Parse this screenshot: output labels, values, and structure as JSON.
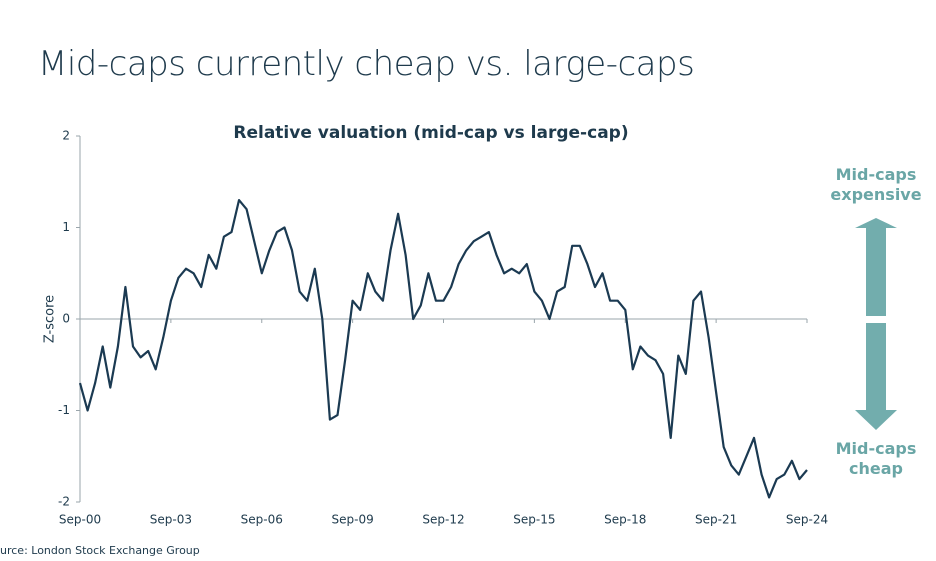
{
  "slide_title": "Mid-caps currently cheap vs. large-caps",
  "source": "urce: London Stock Exchange Group",
  "chart_data": {
    "type": "line",
    "title": "Relative valuation (mid-cap vs large-cap)",
    "y_label": "Z-score",
    "annotations": [
      "Mid-caps expensive",
      "Mid-caps cheap"
    ],
    "color": "#1b3a52",
    "x": [
      "2000-09",
      "2000-12",
      "2001-03",
      "2001-06",
      "2001-09",
      "2001-12",
      "2002-03",
      "2002-06",
      "2002-09",
      "2002-12",
      "2003-03",
      "2003-06",
      "2003-09",
      "2003-12",
      "2004-03",
      "2004-06",
      "2004-09",
      "2004-12",
      "2005-03",
      "2005-06",
      "2005-09",
      "2005-12",
      "2006-03",
      "2006-06",
      "2006-09",
      "2006-12",
      "2007-03",
      "2007-06",
      "2007-09",
      "2007-12",
      "2008-03",
      "2008-06",
      "2008-09",
      "2008-12",
      "2009-03",
      "2009-06",
      "2009-09",
      "2009-12",
      "2010-03",
      "2010-06",
      "2010-09",
      "2010-12",
      "2011-03",
      "2011-06",
      "2011-09",
      "2011-12",
      "2012-03",
      "2012-06",
      "2012-09",
      "2012-12",
      "2013-03",
      "2013-06",
      "2013-09",
      "2013-12",
      "2014-03",
      "2014-06",
      "2014-09",
      "2014-12",
      "2015-03",
      "2015-06",
      "2015-09",
      "2015-12",
      "2016-03",
      "2016-06",
      "2016-09",
      "2016-12",
      "2017-03",
      "2017-06",
      "2017-09",
      "2017-12",
      "2018-03",
      "2018-06",
      "2018-09",
      "2018-12",
      "2019-03",
      "2019-06",
      "2019-09",
      "2019-12",
      "2020-03",
      "2020-06",
      "2020-09",
      "2020-12",
      "2021-03",
      "2021-06",
      "2021-09",
      "2021-12",
      "2022-03",
      "2022-06",
      "2022-09",
      "2022-12",
      "2023-03",
      "2023-06",
      "2023-09",
      "2023-12",
      "2024-03",
      "2024-06",
      "2024-09"
    ],
    "values": [
      -0.7,
      -1.0,
      -0.7,
      -0.3,
      -0.75,
      -0.3,
      0.35,
      -0.3,
      -0.42,
      -0.35,
      -0.55,
      -0.2,
      0.2,
      0.45,
      0.55,
      0.5,
      0.35,
      0.7,
      0.55,
      0.9,
      0.95,
      1.3,
      1.2,
      0.85,
      0.5,
      0.75,
      0.95,
      1.0,
      0.75,
      0.3,
      0.2,
      0.55,
      0.0,
      -1.1,
      -1.05,
      -0.45,
      0.2,
      0.1,
      0.5,
      0.3,
      0.2,
      0.75,
      1.15,
      0.7,
      0.0,
      0.15,
      0.5,
      0.2,
      0.2,
      0.35,
      0.6,
      0.75,
      0.85,
      0.9,
      0.95,
      0.7,
      0.5,
      0.55,
      0.5,
      0.6,
      0.3,
      0.2,
      0.0,
      0.3,
      0.35,
      0.8,
      0.8,
      0.6,
      0.35,
      0.5,
      0.2,
      0.2,
      0.1,
      -0.55,
      -0.3,
      -0.4,
      -0.45,
      -0.6,
      -1.3,
      -0.4,
      -0.6,
      0.2,
      0.3,
      -0.2,
      -0.8,
      -1.4,
      -1.6,
      -1.7,
      -1.5,
      -1.3,
      -1.7,
      -1.95,
      -1.75,
      -1.7,
      -1.55,
      -1.75,
      -1.65
    ],
    "xlim": [
      "2000-09",
      "2024-09"
    ],
    "xticks": [
      {
        "value": "2000-09",
        "label": "Sep-00"
      },
      {
        "value": "2003-09",
        "label": "Sep-03"
      },
      {
        "value": "2006-09",
        "label": "Sep-06"
      },
      {
        "value": "2009-09",
        "label": "Sep-09"
      },
      {
        "value": "2012-09",
        "label": "Sep-12"
      },
      {
        "value": "2015-09",
        "label": "Sep-15"
      },
      {
        "value": "2018-09",
        "label": "Sep-18"
      },
      {
        "value": "2021-09",
        "label": "Sep-21"
      },
      {
        "value": "2024-09",
        "label": "Sep-24"
      }
    ],
    "ylim": [
      -2,
      2
    ],
    "yticks": [
      -2,
      -1,
      0,
      1,
      2
    ]
  }
}
